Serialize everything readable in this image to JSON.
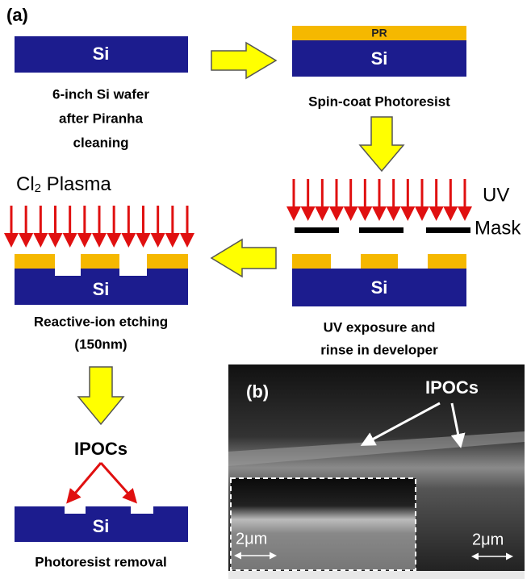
{
  "panel_a": {
    "label": "(a)",
    "steps": [
      {
        "layer": "Si",
        "caption": [
          "6-inch Si wafer",
          "after Piranha",
          "cleaning"
        ]
      },
      {
        "resist": "PR",
        "layer": "Si",
        "caption": [
          "Spin-coat Photoresist"
        ]
      },
      {
        "source": "UV",
        "mask": "Mask",
        "layer": "Si",
        "caption": [
          "UV exposure and",
          "rinse in developer"
        ]
      },
      {
        "source_main": "Cl",
        "source_sub": "2",
        "source_rest": " Plasma",
        "layer": "Si",
        "caption": [
          "Reactive-ion etching",
          "(150nm)"
        ]
      },
      {
        "annotation": "IPOCs",
        "layer": "Si",
        "caption": [
          "Photoresist removal"
        ]
      }
    ]
  },
  "panel_b": {
    "label": "(b)",
    "annotation": "IPOCs",
    "scale_bars": [
      "2μm",
      "2μm"
    ]
  }
}
